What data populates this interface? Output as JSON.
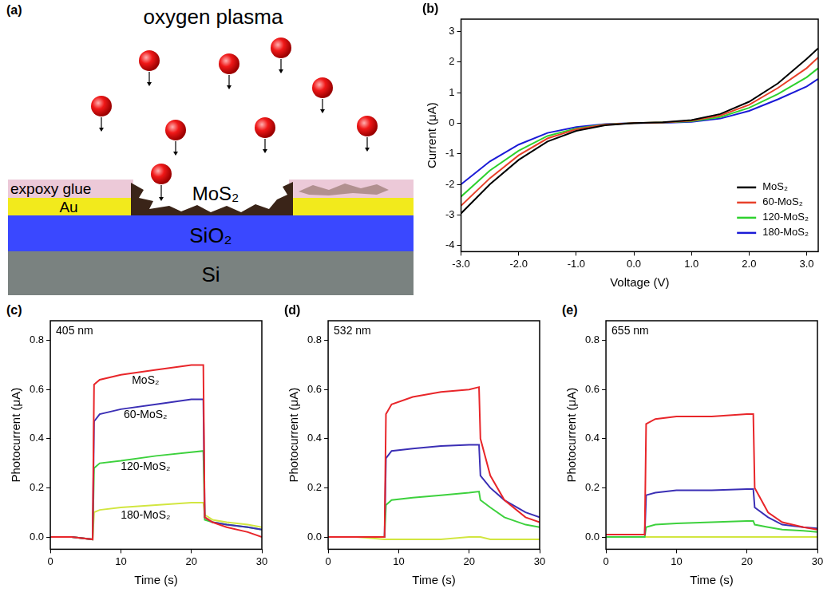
{
  "diagram": {
    "panel": "(a)",
    "title": "oxygen plasma",
    "layers": {
      "epoxy": "expoxy glue",
      "film": "MoS₂",
      "electrode": "Au",
      "oxide": "SiO₂",
      "substrate": "Si"
    }
  },
  "chart_data": [
    {
      "panel": "(b)",
      "type": "line",
      "x_label": "Voltage (V)",
      "y_label": "Current (μA)",
      "x": [
        -3,
        -2.5,
        -2,
        -1.5,
        -1,
        -0.5,
        0,
        0.5,
        1,
        1.5,
        2,
        2.5,
        3,
        3.2
      ],
      "series": [
        {
          "name": "MoS₂",
          "color": "#000000",
          "values": [
            -2.95,
            -2.0,
            -1.2,
            -0.6,
            -0.25,
            -0.07,
            0,
            0.03,
            0.1,
            0.3,
            0.7,
            1.3,
            2.1,
            2.45
          ]
        },
        {
          "name": "60-MoS₂",
          "color": "#e8402a",
          "values": [
            -2.7,
            -1.8,
            -1.05,
            -0.5,
            -0.2,
            -0.05,
            0,
            0.02,
            0.08,
            0.25,
            0.6,
            1.15,
            1.8,
            2.15
          ]
        },
        {
          "name": "120-MoS₂",
          "color": "#2ed12e",
          "values": [
            -2.4,
            -1.55,
            -0.9,
            -0.42,
            -0.17,
            -0.04,
            0,
            0.02,
            0.06,
            0.2,
            0.5,
            0.95,
            1.5,
            1.8
          ]
        },
        {
          "name": "180-MoS₂",
          "color": "#1a1ad6",
          "values": [
            -2.0,
            -1.25,
            -0.7,
            -0.32,
            -0.13,
            -0.03,
            0,
            0.01,
            0.04,
            0.15,
            0.4,
            0.78,
            1.2,
            1.45
          ]
        }
      ],
      "xlim": [
        -3,
        3.2
      ],
      "xticks": [
        {
          "value": -3,
          "label": "-3.0"
        },
        {
          "value": -2,
          "label": "-2.0"
        },
        {
          "value": -1,
          "label": "-1.0"
        },
        {
          "value": 0,
          "label": "0.0"
        },
        {
          "value": 1,
          "label": "1.0"
        },
        {
          "value": 2,
          "label": "2.0"
        },
        {
          "value": 3,
          "label": "3.0"
        }
      ],
      "ylim": [
        -4.2,
        3.4
      ],
      "yticks": [
        -4,
        -3,
        -2,
        -1,
        0,
        1,
        2,
        3
      ],
      "grid": false,
      "legend": "lower right"
    },
    {
      "panel": "(c)",
      "type": "line",
      "annotation": "405 nm",
      "x_label": "Time (s)",
      "y_label": "Photocurrent (μA)",
      "x": [
        0,
        3,
        6,
        6.2,
        7,
        10,
        15,
        20,
        21.7,
        21.9,
        23,
        25,
        28,
        30
      ],
      "series": [
        {
          "name": "MoS₂",
          "color": "#e8262a",
          "values": [
            0,
            0,
            -0.01,
            0.62,
            0.64,
            0.66,
            0.68,
            0.7,
            0.7,
            0.08,
            0.06,
            0.04,
            0.02,
            0.0
          ]
        },
        {
          "name": "60-MoS₂",
          "color": "#3b2fb5",
          "values": [
            0,
            0,
            -0.01,
            0.47,
            0.5,
            0.52,
            0.54,
            0.56,
            0.56,
            0.08,
            0.06,
            0.05,
            0.04,
            0.03
          ]
        },
        {
          "name": "120-MoS₂",
          "color": "#3dd13d",
          "values": [
            0,
            0,
            -0.01,
            0.28,
            0.3,
            0.31,
            0.33,
            0.345,
            0.35,
            0.07,
            0.06,
            0.05,
            0.04,
            0.03
          ]
        },
        {
          "name": "180-MoS₂",
          "color": "#d2e640",
          "values": [
            0,
            0,
            -0.01,
            0.1,
            0.11,
            0.12,
            0.13,
            0.14,
            0.14,
            0.09,
            0.07,
            0.06,
            0.05,
            0.04
          ]
        }
      ],
      "xlim": [
        0,
        30
      ],
      "xticks": [
        0,
        10,
        20,
        30
      ],
      "ylim": [
        -0.05,
        0.88
      ],
      "yticks": [
        {
          "value": 0,
          "label": "0.0"
        },
        0.2,
        0.4,
        0.6,
        0.8
      ],
      "grid": false
    },
    {
      "panel": "(d)",
      "type": "line",
      "annotation": "532 nm",
      "x_label": "Time (s)",
      "y_label": "Photocurrent (μA)",
      "x": [
        0,
        4,
        8,
        8.2,
        9,
        12,
        16,
        20,
        21.4,
        21.6,
        23,
        25,
        28,
        30
      ],
      "series": [
        {
          "color": "#e8262a",
          "values": [
            0,
            0,
            0,
            0.5,
            0.54,
            0.57,
            0.59,
            0.6,
            0.61,
            0.4,
            0.25,
            0.15,
            0.08,
            0.06
          ]
        },
        {
          "color": "#3b2fb5",
          "values": [
            0,
            0,
            0,
            0.32,
            0.35,
            0.36,
            0.37,
            0.375,
            0.375,
            0.25,
            0.2,
            0.15,
            0.1,
            0.08
          ]
        },
        {
          "color": "#3dd13d",
          "values": [
            0,
            0,
            0,
            0.13,
            0.15,
            0.16,
            0.17,
            0.18,
            0.185,
            0.15,
            0.12,
            0.08,
            0.05,
            0.04
          ]
        },
        {
          "color": "#d2e640",
          "values": [
            0,
            0,
            -0.01,
            -0.01,
            -0.01,
            -0.01,
            -0.01,
            0,
            0,
            0,
            -0.01,
            -0.01,
            -0.01,
            -0.01
          ]
        }
      ],
      "xlim": [
        0,
        30
      ],
      "xticks": [
        0,
        10,
        20,
        30
      ],
      "ylim": [
        -0.05,
        0.88
      ],
      "yticks": [
        {
          "value": 0,
          "label": "0.0"
        },
        0.2,
        0.4,
        0.6,
        0.8
      ],
      "grid": false
    },
    {
      "panel": "(e)",
      "type": "line",
      "annotation": "655 nm",
      "x_label": "Time (s)",
      "y_label": "Photocurrent (μA)",
      "x": [
        0,
        3,
        5.5,
        5.7,
        7,
        10,
        15,
        20,
        20.9,
        21.1,
        23,
        25,
        28,
        30
      ],
      "series": [
        {
          "color": "#e8262a",
          "values": [
            0.01,
            0.01,
            0.01,
            0.46,
            0.48,
            0.49,
            0.49,
            0.5,
            0.5,
            0.2,
            0.1,
            0.06,
            0.04,
            0.03
          ]
        },
        {
          "color": "#3b2fb5",
          "values": [
            0.01,
            0.01,
            0.01,
            0.17,
            0.18,
            0.19,
            0.19,
            0.195,
            0.195,
            0.12,
            0.08,
            0.05,
            0.04,
            0.035
          ]
        },
        {
          "color": "#3dd13d",
          "values": [
            0,
            0,
            0,
            0.04,
            0.05,
            0.055,
            0.06,
            0.065,
            0.065,
            0.05,
            0.04,
            0.03,
            0.025,
            0.02
          ]
        },
        {
          "color": "#d2e640",
          "values": [
            0,
            0,
            0,
            0,
            0,
            0,
            0,
            0,
            0,
            0,
            0,
            0,
            0,
            0
          ]
        }
      ],
      "xlim": [
        0,
        30
      ],
      "xticks": [
        0,
        10,
        20,
        30
      ],
      "ylim": [
        -0.05,
        0.88
      ],
      "yticks": [
        {
          "value": 0,
          "label": "0.0"
        },
        0.2,
        0.4,
        0.6,
        0.8
      ],
      "grid": false
    }
  ]
}
